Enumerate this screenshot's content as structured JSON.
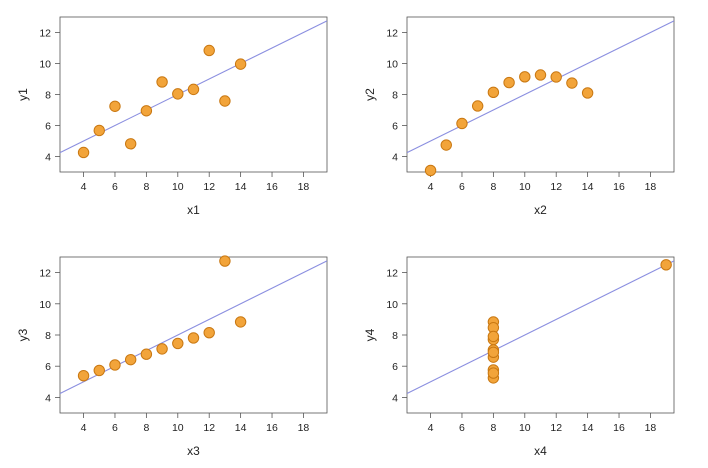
{
  "chart_data": [
    {
      "type": "scatter",
      "xlabel": "x1",
      "ylabel": "y1",
      "xlim": [
        2.5,
        19.5
      ],
      "ylim": [
        3,
        13
      ],
      "xticks": [
        "4",
        "6",
        "8",
        "10",
        "12",
        "14",
        "16",
        "18"
      ],
      "yticks": [
        "4",
        "6",
        "8",
        "10",
        "12"
      ],
      "points": [
        [
          10,
          8.04
        ],
        [
          8,
          6.95
        ],
        [
          13,
          7.58
        ],
        [
          9,
          8.81
        ],
        [
          11,
          8.33
        ],
        [
          14,
          9.96
        ],
        [
          6,
          7.24
        ],
        [
          4,
          4.26
        ],
        [
          12,
          10.84
        ],
        [
          7,
          4.82
        ],
        [
          5,
          5.68
        ]
      ],
      "fit_line": {
        "intercept": 3.0,
        "slope": 0.5
      }
    },
    {
      "type": "scatter",
      "xlabel": "x2",
      "ylabel": "y2",
      "xlim": [
        2.5,
        19.5
      ],
      "ylim": [
        3,
        13
      ],
      "xticks": [
        "4",
        "6",
        "8",
        "10",
        "12",
        "14",
        "16",
        "18"
      ],
      "yticks": [
        "4",
        "6",
        "8",
        "10",
        "12"
      ],
      "points": [
        [
          10,
          9.14
        ],
        [
          8,
          8.14
        ],
        [
          13,
          8.74
        ],
        [
          9,
          8.77
        ],
        [
          11,
          9.26
        ],
        [
          14,
          8.1
        ],
        [
          6,
          6.13
        ],
        [
          4,
          3.1
        ],
        [
          12,
          9.13
        ],
        [
          7,
          7.26
        ],
        [
          5,
          4.74
        ]
      ],
      "fit_line": {
        "intercept": 3.0,
        "slope": 0.5
      }
    },
    {
      "type": "scatter",
      "xlabel": "x3",
      "ylabel": "y3",
      "xlim": [
        2.5,
        19.5
      ],
      "ylim": [
        3,
        13
      ],
      "xticks": [
        "4",
        "6",
        "8",
        "10",
        "12",
        "14",
        "16",
        "18"
      ],
      "yticks": [
        "4",
        "6",
        "8",
        "10",
        "12"
      ],
      "points": [
        [
          10,
          7.46
        ],
        [
          8,
          6.77
        ],
        [
          13,
          12.74
        ],
        [
          9,
          7.11
        ],
        [
          11,
          7.81
        ],
        [
          14,
          8.84
        ],
        [
          6,
          6.08
        ],
        [
          4,
          5.39
        ],
        [
          12,
          8.15
        ],
        [
          7,
          6.42
        ],
        [
          5,
          5.73
        ]
      ],
      "fit_line": {
        "intercept": 3.0,
        "slope": 0.5
      }
    },
    {
      "type": "scatter",
      "xlabel": "x4",
      "ylabel": "y4",
      "xlim": [
        2.5,
        19.5
      ],
      "ylim": [
        3,
        13
      ],
      "xticks": [
        "4",
        "6",
        "8",
        "10",
        "12",
        "14",
        "16",
        "18"
      ],
      "yticks": [
        "4",
        "6",
        "8",
        "10",
        "12"
      ],
      "points": [
        [
          8,
          6.58
        ],
        [
          8,
          5.76
        ],
        [
          8,
          7.71
        ],
        [
          8,
          8.84
        ],
        [
          8,
          8.47
        ],
        [
          8,
          7.04
        ],
        [
          8,
          5.25
        ],
        [
          19,
          12.5
        ],
        [
          8,
          5.56
        ],
        [
          8,
          7.91
        ],
        [
          8,
          6.89
        ]
      ],
      "fit_line": {
        "intercept": 3.0,
        "slope": 0.5
      }
    }
  ],
  "colors": {
    "marker_fill": "#F2A43A",
    "marker_stroke": "#C97812",
    "fit_line": "#8B8FE0",
    "frame": "#555555"
  }
}
